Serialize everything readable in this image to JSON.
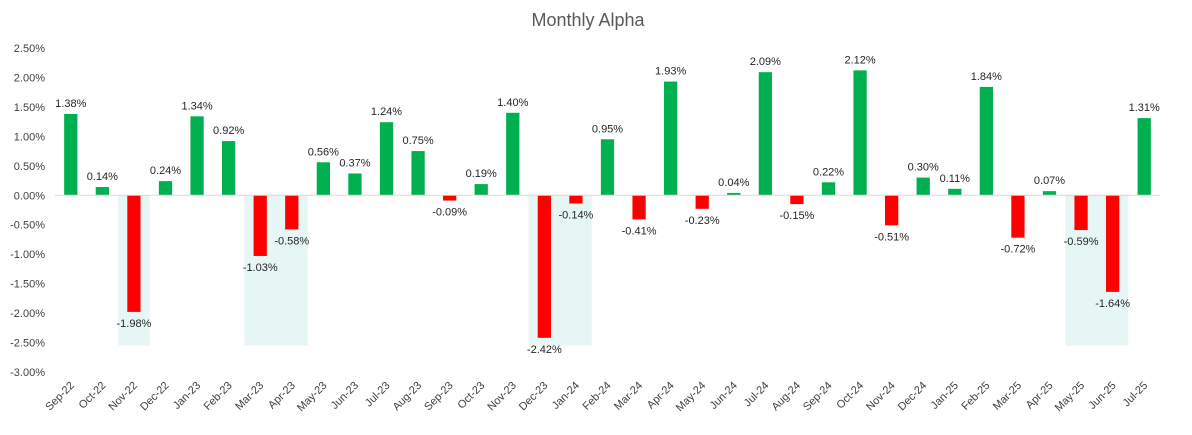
{
  "chart_data": {
    "type": "bar",
    "title": "Monthly Alpha",
    "xlabel": "",
    "ylabel": "",
    "ylim": [
      -3.0,
      2.5
    ],
    "ytick_step": 0.5,
    "ytick_labels": [
      "2.50%",
      "2.00%",
      "1.50%",
      "1.00%",
      "0.50%",
      "0.00%",
      "-0.50%",
      "-1.00%",
      "-1.50%",
      "-2.00%",
      "-2.50%",
      "-3.00%"
    ],
    "grid": false,
    "categories": [
      "Sep-22",
      "Oct-22",
      "Nov-22",
      "Dec-22",
      "Jan-23",
      "Feb-23",
      "Mar-23",
      "Apr-23",
      "May-23",
      "Jun-23",
      "Jul-23",
      "Aug-23",
      "Sep-23",
      "Oct-23",
      "Nov-23",
      "Dec-23",
      "Jan-24",
      "Feb-24",
      "Mar-24",
      "Apr-24",
      "May-24",
      "Jun-24",
      "Jul-24",
      "Aug-24",
      "Sep-24",
      "Oct-24",
      "Nov-24",
      "Dec-24",
      "Jan-25",
      "Feb-25",
      "Mar-25",
      "Apr-25",
      "May-25",
      "Jun-25",
      "Jul-25"
    ],
    "values": [
      1.38,
      0.14,
      -1.98,
      0.24,
      1.34,
      0.92,
      -1.03,
      -0.58,
      0.56,
      0.37,
      1.24,
      0.75,
      -0.09,
      0.19,
      1.4,
      -2.42,
      -0.14,
      0.95,
      -0.41,
      1.93,
      -0.23,
      0.04,
      2.09,
      -0.15,
      0.22,
      2.12,
      -0.51,
      0.3,
      0.11,
      1.84,
      -0.72,
      0.07,
      -0.59,
      -1.64,
      1.31
    ],
    "data_labels": [
      "1.38%",
      "0.14%",
      "-1.98%",
      "0.24%",
      "1.34%",
      "0.92%",
      "-1.03%",
      "-0.58%",
      "0.56%",
      "0.37%",
      "1.24%",
      "0.75%",
      "-0.09%",
      "0.19%",
      "1.40%",
      "-2.42%",
      "-0.14%",
      "0.95%",
      "-0.41%",
      "1.93%",
      "-0.23%",
      "0.04%",
      "2.09%",
      "-0.15%",
      "0.22%",
      "2.12%",
      "-0.51%",
      "0.30%",
      "0.11%",
      "1.84%",
      "-0.72%",
      "0.07%",
      "-0.59%",
      "-1.64%",
      "1.31%"
    ],
    "highlight_ranges": [
      {
        "from": "Nov-22",
        "to": "Nov-22",
        "y_from": 0,
        "y_to": -2.55
      },
      {
        "from": "Mar-23",
        "to": "Apr-23",
        "y_from": 0,
        "y_to": -2.55
      },
      {
        "from": "Dec-23",
        "to": "Jan-24",
        "y_from": 0,
        "y_to": -2.55
      },
      {
        "from": "May-25",
        "to": "Jun-25",
        "y_from": 0,
        "y_to": -2.55
      }
    ],
    "colors": {
      "positive": "#00B050",
      "negative": "#FF0000",
      "highlight": "#E6F6F5",
      "axis": "#D9D9D9"
    }
  }
}
